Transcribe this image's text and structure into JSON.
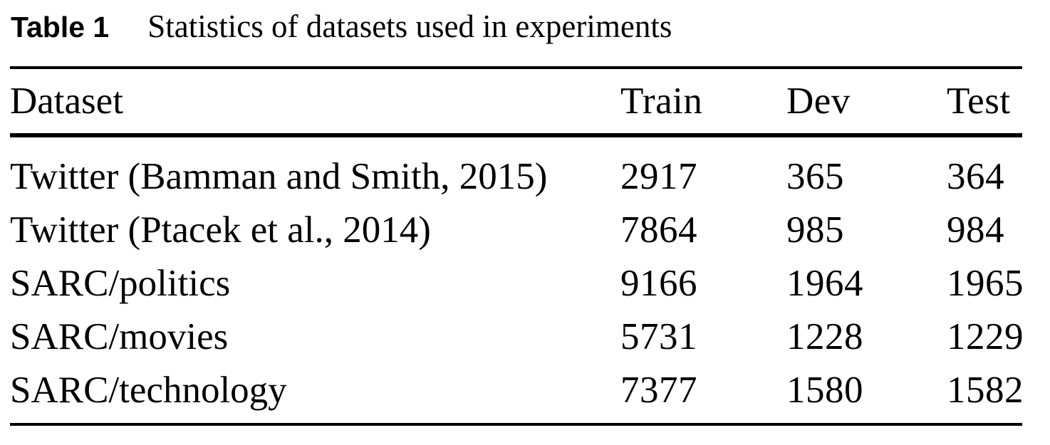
{
  "caption": {
    "label": "Table 1",
    "text": "Statistics of datasets used in experiments"
  },
  "table": {
    "columns": [
      "Dataset",
      "Train",
      "Dev",
      "Test"
    ],
    "rows": [
      [
        "Twitter (Bamman and Smith, 2015)",
        "2917",
        "365",
        "364"
      ],
      [
        "Twitter (Ptacek et al., 2014)",
        "7864",
        "985",
        "984"
      ],
      [
        "SARC/politics",
        "9166",
        "1964",
        "1965"
      ],
      [
        "SARC/movies",
        "5731",
        "1228",
        "1229"
      ],
      [
        "SARC/technology",
        "7377",
        "1580",
        "1582"
      ]
    ]
  },
  "colors": {
    "text": "#000000",
    "background": "#ffffff",
    "rule": "#000000"
  }
}
